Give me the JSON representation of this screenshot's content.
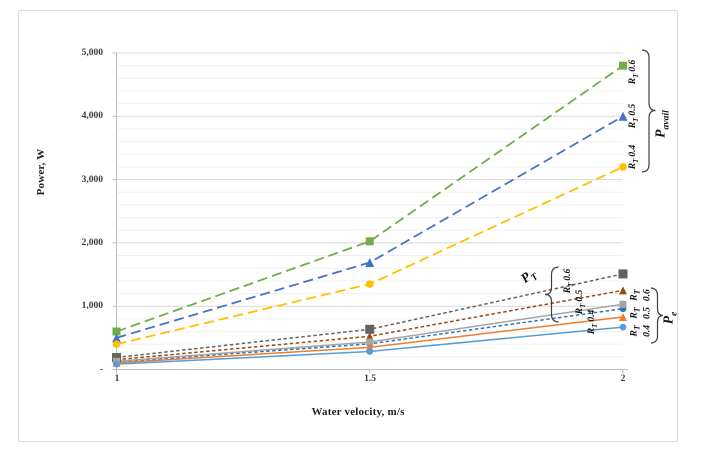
{
  "figure": {
    "xlabel": "Water velocity, m/s",
    "ylabel": "Power, W",
    "x_ticks": [
      "1",
      "1.5",
      "2"
    ],
    "y_ticks": [
      "5,000",
      "4,000",
      "3,000",
      "2,000",
      "1,000",
      "-"
    ]
  },
  "annotations": {
    "pavail": {
      "label": {
        "base": "P",
        "sub": "avail"
      },
      "items": [
        {
          "base": "R",
          "sub": "T",
          "value": "0.6"
        },
        {
          "base": "R",
          "sub": "T",
          "value": "0.5"
        },
        {
          "base": "R",
          "sub": "T",
          "value": "0.4"
        }
      ]
    },
    "pt": {
      "label": {
        "base": "P",
        "sub": "T"
      },
      "items": [
        {
          "base": "R",
          "sub": "T",
          "value": "0.6"
        },
        {
          "base": "R",
          "sub": "T",
          "value": "0.5"
        },
        {
          "base": "R",
          "sub": "T",
          "value": "0.4"
        }
      ]
    },
    "pe": {
      "label": {
        "base": "P",
        "sub": "e"
      },
      "items": [
        {
          "base": "R",
          "sub": "T",
          "value": "0.4"
        },
        {
          "base": "R",
          "sub": "T",
          "value": "0.5"
        },
        {
          "base": "R",
          "sub": "T",
          "value": "0.6"
        }
      ]
    }
  },
  "chart_data": {
    "type": "line",
    "title": "",
    "xlabel": "Water velocity, m/s",
    "ylabel": "Power, W",
    "x": [
      1,
      1.5,
      2
    ],
    "xlim": [
      1,
      2
    ],
    "ylim": [
      0,
      5000
    ],
    "y_major_step": 1000,
    "y_minor_step": 200,
    "grid": "horizontal",
    "legend": "annotated on chart (no legend box)",
    "series": [
      {
        "name": "P_avail, R_T 0.6",
        "group": "P_avail",
        "rt": 0.6,
        "values": [
          600,
          2025,
          4800
        ],
        "color": "#70AD47",
        "dash": "long",
        "marker": "square",
        "marker_size": 8
      },
      {
        "name": "P_avail, R_T 0.5",
        "group": "P_avail",
        "rt": 0.5,
        "values": [
          500,
          1690,
          4000
        ],
        "color": "#4472C4",
        "dash": "long",
        "marker": "triangle",
        "marker_size": 9
      },
      {
        "name": "P_avail, R_T 0.4",
        "group": "P_avail",
        "rt": 0.4,
        "values": [
          400,
          1350,
          3200
        ],
        "color": "#FFC000",
        "dash": "long",
        "marker": "circle",
        "marker_size": 8
      },
      {
        "name": "P_T, R_T 0.6",
        "group": "P_T",
        "rt": 0.6,
        "values": [
          190,
          635,
          1510
        ],
        "color": "#636363",
        "dash": "short",
        "marker": "square",
        "marker_size": 9
      },
      {
        "name": "P_T, R_T 0.5",
        "group": "P_T",
        "rt": 0.5,
        "values": [
          155,
          525,
          1250
        ],
        "color": "#9E480E",
        "dash": "short",
        "marker": "triangle",
        "marker_size": 8
      },
      {
        "name": "P_T, R_T 0.4",
        "group": "P_T",
        "rt": 0.4,
        "values": [
          120,
          405,
          960
        ],
        "color": "#2E75B6",
        "dash": "short",
        "marker": "circle",
        "marker_size": 7
      },
      {
        "name": "P_e, R_T 0.6",
        "group": "P_e",
        "rt": 0.6,
        "values": [
          130,
          435,
          1030
        ],
        "color": "#A5A5A5",
        "dash": "solid",
        "marker": "square",
        "marker_size": 7
      },
      {
        "name": "P_e, R_T 0.5",
        "group": "P_e",
        "rt": 0.5,
        "values": [
          105,
          350,
          830
        ],
        "color": "#ED7D31",
        "dash": "solid",
        "marker": "triangle",
        "marker_size": 8
      },
      {
        "name": "P_e, R_T 0.4",
        "group": "P_e",
        "rt": 0.4,
        "values": [
          85,
          285,
          670
        ],
        "color": "#5B9BD5",
        "dash": "solid",
        "marker": "circle",
        "marker_size": 7
      }
    ]
  }
}
